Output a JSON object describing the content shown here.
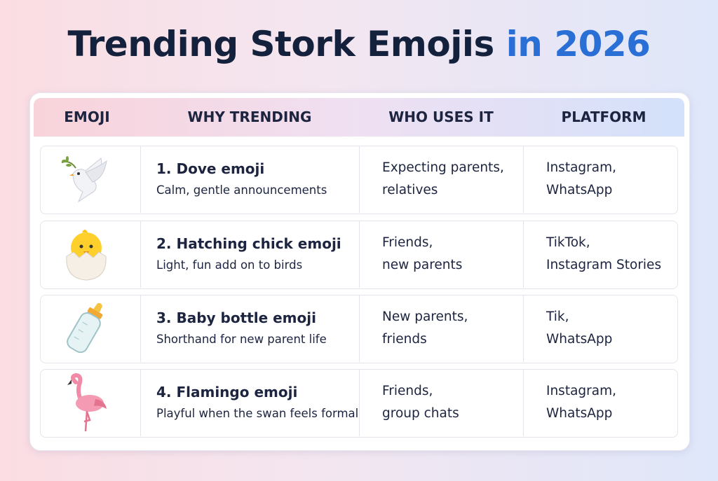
{
  "title": {
    "main": "Trending Stork Emojis",
    "highlight": "in 2026"
  },
  "table": {
    "headers": [
      "EMOJI",
      "WHY TRENDING",
      "WHO USES IT",
      "PLATFORM"
    ],
    "rows": [
      {
        "name": "1. Dove emoji",
        "description": "Calm, gentle announcements",
        "who": [
          "Expecting parents,",
          "relatives"
        ],
        "platform": [
          "Instagram,",
          "WhatsApp"
        ]
      },
      {
        "name": "2. Hatching chick emoji",
        "description": "Light, fun add on to birds",
        "who": [
          "Friends,",
          "new parents"
        ],
        "platform": [
          "TikTok,",
          "Instagram Stories"
        ]
      },
      {
        "name": "3. Baby bottle emoji",
        "description": "Shorthand for new parent life",
        "who": [
          "New parents,",
          "friends"
        ],
        "platform": [
          "Tik,",
          "WhatsApp"
        ]
      },
      {
        "name": "4. Flamingo emoji",
        "description": "Playful when the swan feels formal",
        "who": [
          "Friends,",
          "group chats"
        ],
        "platform": [
          "Instagram,",
          "WhatsApp"
        ]
      }
    ]
  }
}
